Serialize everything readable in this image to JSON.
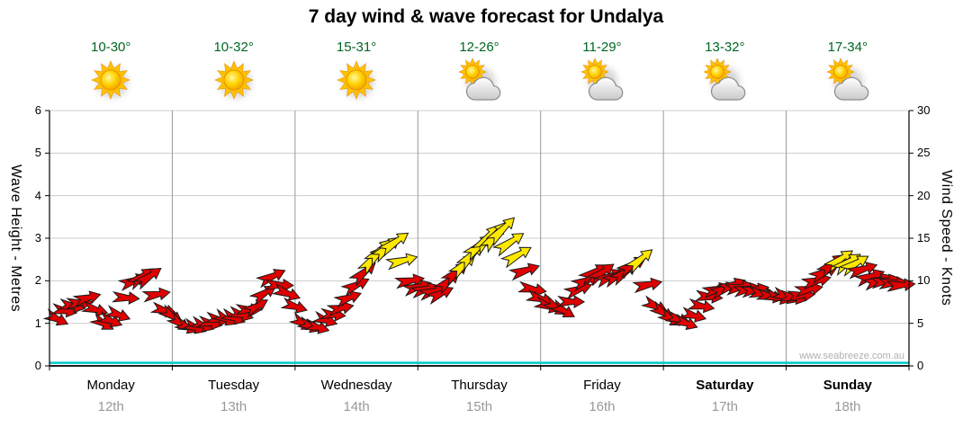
{
  "watermark": "www.seabreeze.com.au",
  "chart_data": {
    "type": "scatter",
    "style": "wind-arrow-timeseries",
    "title": "7 day wind & wave forecast for Undalya",
    "left_axis": {
      "label": "Wave Height - Metres",
      "range": [
        0,
        6
      ],
      "ticks": [
        0,
        1,
        2,
        3,
        4,
        5,
        6
      ]
    },
    "right_axis": {
      "label": "Wind Speed - Knots",
      "range": [
        0,
        30
      ],
      "ticks": [
        0,
        5,
        10,
        15,
        20,
        25,
        30
      ]
    },
    "days": [
      {
        "name": "Monday",
        "date": "12th",
        "temp": "10-30°",
        "icon": "sunny",
        "weekend": false
      },
      {
        "name": "Tuesday",
        "date": "13th",
        "temp": "10-32°",
        "icon": "sunny",
        "weekend": false
      },
      {
        "name": "Wednesday",
        "date": "14th",
        "temp": "15-31°",
        "icon": "sunny",
        "weekend": false
      },
      {
        "name": "Thursday",
        "date": "15th",
        "temp": "12-26°",
        "icon": "partly-cloudy",
        "weekend": false
      },
      {
        "name": "Friday",
        "date": "16th",
        "temp": "11-29°",
        "icon": "partly-cloudy",
        "weekend": false
      },
      {
        "name": "Saturday",
        "date": "17th",
        "temp": "13-32°",
        "icon": "partly-cloudy",
        "weekend": true
      },
      {
        "name": "Sunday",
        "date": "18th",
        "temp": "17-34°",
        "icon": "partly-cloudy",
        "weekend": true
      }
    ],
    "wind_speed_knots": [
      5.5,
      7,
      8,
      5,
      6,
      10,
      10.5,
      6.5,
      5,
      4.5,
      5,
      5.5,
      6,
      7,
      10.5,
      8.5,
      5,
      4.5,
      6,
      8,
      11,
      13.5,
      14.5,
      10,
      9,
      8.5,
      11,
      13,
      15,
      16,
      13,
      9,
      7,
      6.5,
      9,
      11,
      10.5,
      11,
      12.5,
      7,
      5.5,
      5,
      7,
      9,
      9.5,
      9,
      8.5,
      8,
      8,
      9,
      11,
      12.5,
      12,
      10.5,
      10,
      9.5
    ],
    "wind_dir_deg": [
      25,
      10,
      -15,
      30,
      20,
      -20,
      -35,
      15,
      35,
      20,
      10,
      25,
      15,
      -30,
      -25,
      20,
      30,
      15,
      5,
      -20,
      -40,
      -45,
      -35,
      -10,
      -15,
      -25,
      -40,
      -45,
      -50,
      -45,
      -30,
      10,
      20,
      30,
      -20,
      -30,
      -25,
      -35,
      -40,
      25,
      30,
      20,
      10,
      -15,
      -20,
      -10,
      5,
      15,
      10,
      -10,
      -25,
      -35,
      -30,
      -20,
      -10,
      -5
    ],
    "wave_height_m": 0.05,
    "colors": {
      "arrow_normal": "#E00000",
      "arrow_strong": "#FFE800",
      "strong_threshold": 12,
      "wave_line": "#00C8C8",
      "temp_text": "#006622",
      "date_text": "#999999",
      "grid_h": "#cccccc",
      "grid_v": "#999999"
    }
  }
}
